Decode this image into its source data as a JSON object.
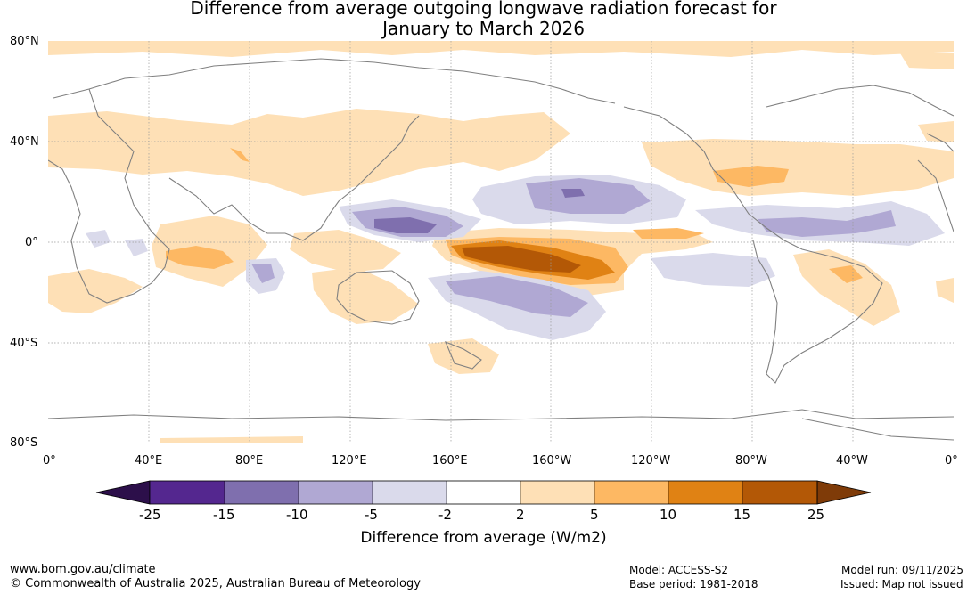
{
  "title": {
    "line1": "Difference from average outgoing longwave radiation forecast for",
    "line2": "January to March 2026"
  },
  "map": {
    "lat_labels": [
      "80°N",
      "40°N",
      "0°",
      "40°S",
      "80°S"
    ],
    "lon_labels": [
      "0°",
      "40°E",
      "80°E",
      "120°E",
      "160°E",
      "160°W",
      "120°W",
      "80°W",
      "40°W",
      "0°"
    ]
  },
  "colorbar": {
    "title": "Difference from average (W/m2)",
    "ticks": [
      "-25",
      "-15",
      "-10",
      "-5",
      "-2",
      "2",
      "5",
      "10",
      "15",
      "25"
    ],
    "colors": [
      "#2c0f4a",
      "#54278f",
      "#7f6fae",
      "#b0a8d3",
      "#dadaeb",
      "#ffffff",
      "#fee0b6",
      "#fdb863",
      "#e08214",
      "#b35806",
      "#7f3b08"
    ]
  },
  "footer": {
    "website": "www.bom.gov.au/climate",
    "copyright": "© Commonwealth of Australia 2025, Australian Bureau of Meteorology",
    "model": "Model: ACCESS-S2",
    "base_period": "Base period: 1981-2018",
    "model_run": "Model run: 09/11/2025",
    "issued": "Issued: Map not issued"
  }
}
